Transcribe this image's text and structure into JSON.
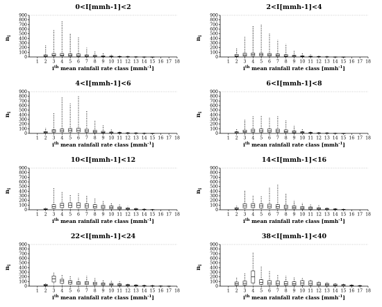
{
  "figure": {
    "xlabel_pre": "i",
    "xlabel_sup": "th",
    "xlabel_post": " mean rainfall rate class [mmh",
    "xlabel_unit_sup": "-1",
    "xlabel_end": "]",
    "ylabel_main": "n",
    "ylabel_sub": "i"
  },
  "chart_data": [
    {
      "type": "box",
      "title": "0<I[mmh-1]<2",
      "xlabel": "ith mean rainfall rate class [mmh-1]",
      "ylabel": "ni",
      "xlim": [
        0,
        18
      ],
      "ylim": [
        0,
        900
      ],
      "x_ticks": [
        1,
        2,
        3,
        4,
        5,
        6,
        7,
        8,
        9,
        10,
        11,
        12,
        13,
        14,
        15,
        16,
        17,
        18
      ],
      "y_ticks": [
        0,
        100,
        200,
        300,
        400,
        500,
        600,
        700,
        800,
        900
      ],
      "classes": [
        2,
        3,
        4,
        5,
        6,
        7,
        8,
        9,
        10,
        11,
        12,
        13,
        14,
        15
      ],
      "max": [
        250,
        580,
        780,
        500,
        420,
        200,
        120,
        90,
        60,
        40,
        25,
        15,
        10,
        5
      ],
      "q3": [
        45,
        75,
        75,
        70,
        65,
        45,
        35,
        25,
        18,
        12,
        8,
        5,
        3,
        2
      ],
      "median": [
        20,
        40,
        40,
        35,
        30,
        20,
        15,
        10,
        8,
        5,
        3,
        2,
        1,
        1
      ],
      "q1": [
        8,
        20,
        20,
        15,
        12,
        8,
        5,
        3,
        2,
        1,
        1,
        0,
        0,
        0
      ],
      "min": [
        1,
        2,
        2,
        1,
        1,
        0,
        0,
        0,
        0,
        0,
        0,
        0,
        0,
        0
      ]
    },
    {
      "type": "box",
      "title": "2<I[mmh-1]<4",
      "xlabel": "ith mean rainfall rate class [mmh-1]",
      "ylabel": "ni",
      "xlim": [
        0,
        18
      ],
      "ylim": [
        0,
        900
      ],
      "x_ticks": [
        1,
        2,
        3,
        4,
        5,
        6,
        7,
        8,
        9,
        10,
        11,
        12,
        13,
        14,
        15,
        16,
        17,
        18
      ],
      "y_ticks": [
        0,
        100,
        200,
        300,
        400,
        500,
        600,
        700,
        800,
        900
      ],
      "classes": [
        2,
        3,
        4,
        5,
        6,
        7,
        8,
        9,
        10,
        11,
        12,
        13,
        14,
        15
      ],
      "max": [
        180,
        430,
        680,
        700,
        500,
        370,
        280,
        150,
        90,
        60,
        30,
        20,
        10,
        5
      ],
      "q3": [
        55,
        80,
        85,
        80,
        75,
        65,
        50,
        35,
        25,
        15,
        10,
        6,
        3,
        2
      ],
      "median": [
        25,
        45,
        55,
        50,
        45,
        35,
        25,
        18,
        12,
        8,
        5,
        3,
        1,
        1
      ],
      "q1": [
        10,
        20,
        25,
        25,
        20,
        15,
        10,
        6,
        4,
        2,
        1,
        1,
        0,
        0
      ],
      "min": [
        1,
        3,
        4,
        3,
        2,
        1,
        1,
        0,
        0,
        0,
        0,
        0,
        0,
        0
      ]
    },
    {
      "type": "box",
      "title": "4<I[mmh-1]<6",
      "xlabel": "ith mean rainfall rate class [mmh-1]",
      "ylabel": "ni",
      "xlim": [
        0,
        18
      ],
      "ylim": [
        0,
        900
      ],
      "x_ticks": [
        1,
        2,
        3,
        4,
        5,
        6,
        7,
        8,
        9,
        10,
        11,
        12,
        13,
        14,
        15,
        16,
        17,
        18
      ],
      "y_ticks": [
        0,
        100,
        200,
        300,
        400,
        500,
        600,
        700,
        800,
        900
      ],
      "classes": [
        2,
        3,
        4,
        5,
        6,
        7,
        8,
        9,
        10,
        11,
        12,
        13,
        14,
        15
      ],
      "max": [
        120,
        440,
        780,
        640,
        820,
        500,
        270,
        170,
        100,
        60,
        40,
        25,
        15,
        8
      ],
      "q3": [
        40,
        80,
        95,
        105,
        110,
        90,
        65,
        45,
        30,
        20,
        12,
        8,
        4,
        2
      ],
      "median": [
        20,
        50,
        60,
        65,
        65,
        50,
        35,
        25,
        15,
        10,
        6,
        4,
        2,
        1
      ],
      "q1": [
        8,
        25,
        30,
        30,
        30,
        25,
        15,
        10,
        6,
        4,
        2,
        1,
        1,
        0
      ],
      "min": [
        1,
        4,
        5,
        5,
        4,
        3,
        2,
        1,
        0,
        0,
        0,
        0,
        0,
        0
      ]
    },
    {
      "type": "box",
      "title": "6<I[mmh-1]<8",
      "xlabel": "ith mean rainfall rate class [mmh-1]",
      "ylabel": "ni",
      "xlim": [
        0,
        18
      ],
      "ylim": [
        0,
        900
      ],
      "x_ticks": [
        1,
        2,
        3,
        4,
        5,
        6,
        7,
        8,
        9,
        10,
        11,
        12,
        13,
        14,
        15,
        16,
        17,
        18
      ],
      "y_ticks": [
        0,
        100,
        200,
        300,
        400,
        500,
        600,
        700,
        800,
        900
      ],
      "classes": [
        2,
        3,
        4,
        5,
        6,
        7,
        8,
        9,
        10,
        11,
        12,
        13,
        14,
        15
      ],
      "max": [
        90,
        300,
        390,
        380,
        340,
        390,
        300,
        170,
        110,
        60,
        40,
        25,
        12,
        6
      ],
      "q3": [
        35,
        70,
        90,
        95,
        95,
        90,
        75,
        55,
        35,
        20,
        12,
        8,
        4,
        2
      ],
      "median": [
        18,
        40,
        55,
        55,
        55,
        50,
        40,
        30,
        20,
        10,
        6,
        4,
        2,
        1
      ],
      "q1": [
        6,
        20,
        25,
        25,
        25,
        22,
        18,
        12,
        8,
        4,
        2,
        1,
        1,
        0
      ],
      "min": [
        1,
        3,
        5,
        5,
        4,
        3,
        2,
        1,
        0,
        0,
        0,
        0,
        0,
        0
      ]
    },
    {
      "type": "box",
      "title": "10<I[mmh-1]<12",
      "xlabel": "ith mean rainfall rate class [mmh-1]",
      "ylabel": "ni",
      "xlim": [
        0,
        18
      ],
      "ylim": [
        0,
        900
      ],
      "x_ticks": [
        1,
        2,
        3,
        4,
        5,
        6,
        7,
        8,
        9,
        10,
        11,
        12,
        13,
        14,
        15,
        16,
        17,
        18
      ],
      "y_ticks": [
        0,
        100,
        200,
        300,
        400,
        500,
        600,
        700,
        800,
        900
      ],
      "classes": [
        2,
        3,
        4,
        5,
        6,
        7,
        8,
        9,
        10,
        11,
        12,
        13,
        14,
        15
      ],
      "max": [
        60,
        480,
        390,
        320,
        350,
        300,
        250,
        200,
        160,
        120,
        80,
        50,
        30,
        15
      ],
      "q3": [
        25,
        110,
        140,
        150,
        150,
        130,
        110,
        95,
        85,
        60,
        40,
        25,
        12,
        6
      ],
      "median": [
        10,
        70,
        95,
        100,
        95,
        85,
        70,
        60,
        50,
        35,
        20,
        12,
        6,
        3
      ],
      "q1": [
        4,
        30,
        45,
        50,
        45,
        40,
        35,
        28,
        22,
        15,
        8,
        5,
        2,
        1
      ],
      "min": [
        0,
        5,
        8,
        8,
        6,
        5,
        4,
        3,
        2,
        1,
        0,
        0,
        0,
        0
      ]
    },
    {
      "type": "box",
      "title": "14<I[mmh-1]<16",
      "xlabel": "ith mean rainfall rate class [mmh-1]",
      "ylabel": "ni",
      "xlim": [
        0,
        18
      ],
      "ylim": [
        0,
        900
      ],
      "x_ticks": [
        1,
        2,
        3,
        4,
        5,
        6,
        7,
        8,
        9,
        10,
        11,
        12,
        13,
        14,
        15,
        16,
        17,
        18
      ],
      "y_ticks": [
        0,
        100,
        200,
        300,
        400,
        500,
        600,
        700,
        800,
        900
      ],
      "classes": [
        2,
        3,
        4,
        5,
        6,
        7,
        8,
        9,
        10,
        11,
        12,
        13,
        14,
        15
      ],
      "max": [
        90,
        420,
        310,
        290,
        470,
        560,
        340,
        200,
        150,
        120,
        100,
        60,
        40,
        20
      ],
      "q3": [
        45,
        130,
        135,
        125,
        120,
        110,
        100,
        85,
        70,
        60,
        45,
        30,
        18,
        10
      ],
      "median": [
        25,
        85,
        90,
        80,
        75,
        70,
        60,
        50,
        42,
        35,
        25,
        16,
        10,
        5
      ],
      "q1": [
        10,
        40,
        45,
        40,
        35,
        30,
        25,
        20,
        15,
        12,
        8,
        5,
        3,
        2
      ],
      "min": [
        1,
        6,
        8,
        7,
        5,
        4,
        3,
        2,
        1,
        1,
        0,
        0,
        0,
        0
      ]
    },
    {
      "type": "box",
      "title": "22<I[mmh-1]<24",
      "xlabel": "ith mean rainfall rate class [mmh-1]",
      "ylabel": "ni",
      "xlim": [
        0,
        18
      ],
      "ylim": [
        0,
        900
      ],
      "x_ticks": [
        1,
        2,
        3,
        4,
        5,
        6,
        7,
        8,
        9,
        10,
        11,
        12,
        13,
        14,
        15,
        16,
        17,
        18
      ],
      "y_ticks": [
        0,
        100,
        200,
        300,
        400,
        500,
        600,
        700,
        800,
        900
      ],
      "classes": [
        2,
        3,
        4,
        5,
        6,
        7,
        8,
        9,
        10,
        11,
        12,
        13,
        14,
        15,
        16,
        17
      ],
      "max": [
        70,
        300,
        260,
        210,
        180,
        220,
        170,
        140,
        120,
        100,
        70,
        50,
        35,
        25,
        15,
        10
      ],
      "q3": [
        40,
        220,
        150,
        120,
        95,
        100,
        85,
        70,
        60,
        50,
        35,
        25,
        15,
        10,
        6,
        4
      ],
      "median": [
        25,
        160,
        110,
        85,
        65,
        65,
        55,
        45,
        38,
        30,
        20,
        14,
        8,
        5,
        3,
        2
      ],
      "q1": [
        12,
        90,
        60,
        45,
        35,
        35,
        28,
        22,
        18,
        14,
        9,
        6,
        3,
        2,
        1,
        1
      ],
      "min": [
        2,
        20,
        15,
        10,
        8,
        6,
        5,
        4,
        3,
        2,
        1,
        1,
        0,
        0,
        0,
        0
      ]
    },
    {
      "type": "box",
      "title": "38<I[mmh-1]<40",
      "xlabel": "ith mean rainfall rate class [mmh-1]",
      "ylabel": "ni",
      "xlim": [
        0,
        18
      ],
      "ylim": [
        0,
        900
      ],
      "x_ticks": [
        1,
        2,
        3,
        4,
        5,
        6,
        7,
        8,
        9,
        10,
        11,
        12,
        13,
        14,
        15,
        16,
        17,
        18
      ],
      "y_ticks": [
        0,
        100,
        200,
        300,
        400,
        500,
        600,
        700,
        800,
        900
      ],
      "classes": [
        2,
        3,
        4,
        5,
        6,
        7,
        8,
        9,
        10,
        11,
        12,
        13,
        14,
        15,
        16,
        17
      ],
      "max": [
        200,
        280,
        720,
        420,
        320,
        260,
        220,
        190,
        170,
        150,
        120,
        100,
        80,
        60,
        40,
        25
      ],
      "q3": [
        90,
        110,
        330,
        140,
        120,
        110,
        100,
        95,
        120,
        110,
        80,
        60,
        45,
        35,
        22,
        12
      ],
      "median": [
        55,
        60,
        200,
        85,
        70,
        60,
        55,
        50,
        65,
        60,
        45,
        35,
        25,
        18,
        12,
        6
      ],
      "q1": [
        20,
        25,
        70,
        40,
        30,
        25,
        22,
        20,
        25,
        22,
        18,
        12,
        8,
        6,
        4,
        2
      ],
      "min": [
        2,
        4,
        8,
        5,
        4,
        3,
        3,
        2,
        2,
        2,
        1,
        1,
        0,
        0,
        0,
        0
      ]
    }
  ]
}
